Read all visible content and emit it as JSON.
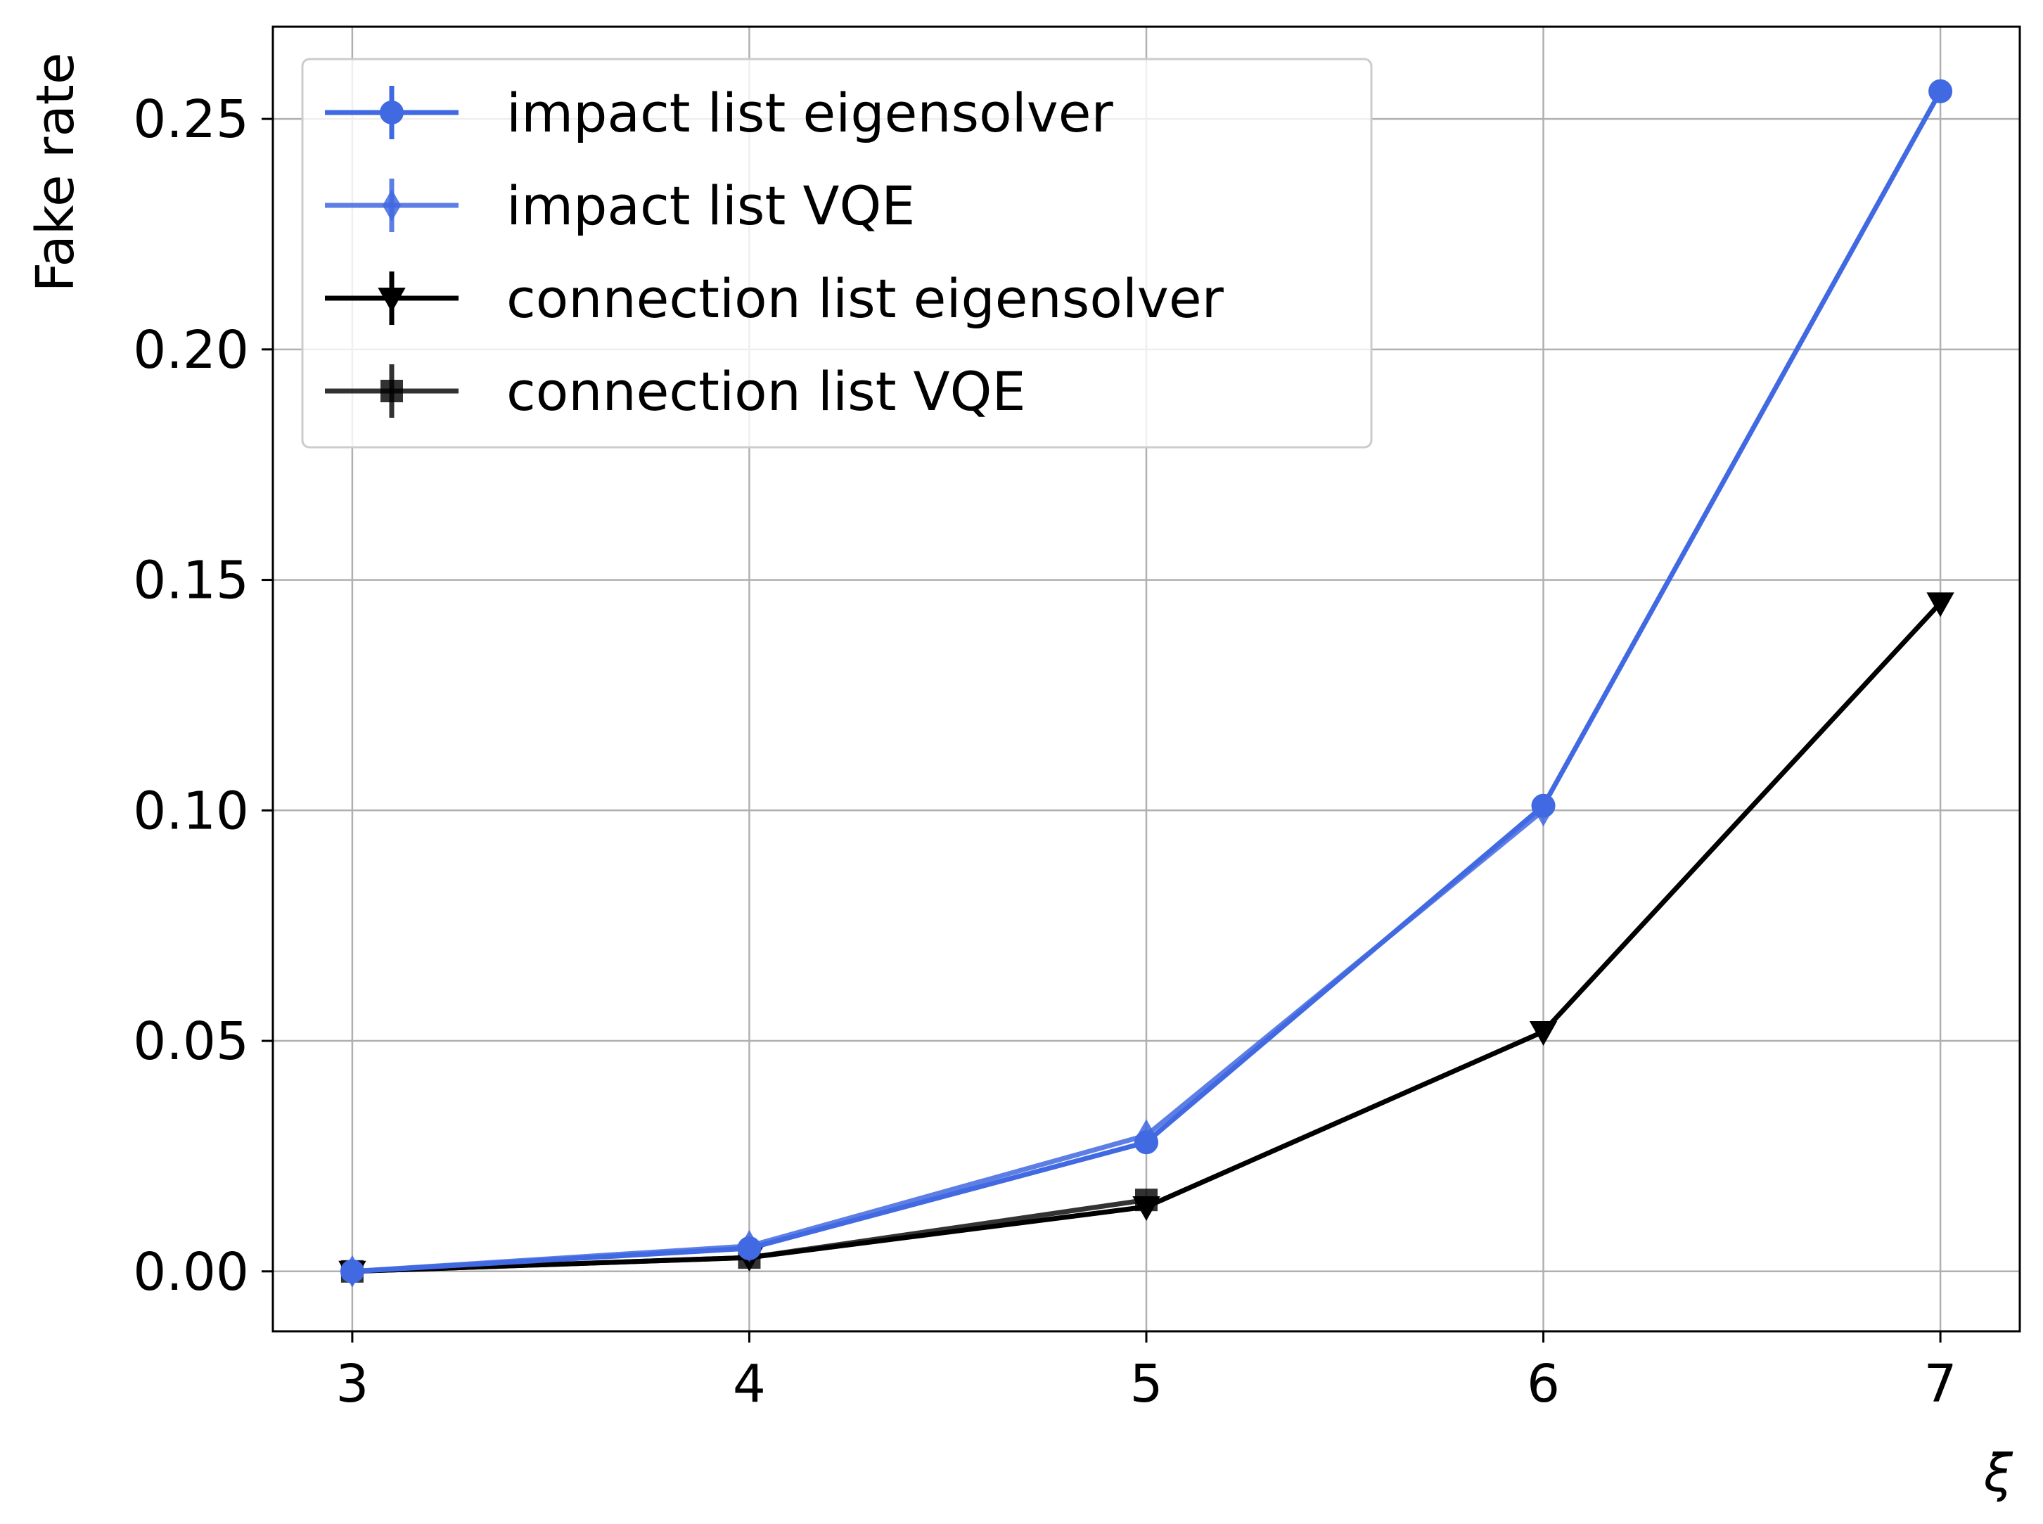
{
  "chart_data": {
    "type": "line",
    "title": "",
    "xlabel": "ξ",
    "ylabel": "Fake rate",
    "x": [
      3,
      4,
      5,
      6,
      7
    ],
    "xlim": [
      2.8,
      7.2
    ],
    "ylim": [
      -0.013,
      0.27
    ],
    "xticks": [
      3,
      4,
      5,
      6,
      7
    ],
    "xtick_labels": [
      "3",
      "4",
      "5",
      "6",
      "7"
    ],
    "yticks": [
      0.0,
      0.05,
      0.1,
      0.15,
      0.2,
      0.25
    ],
    "ytick_labels": [
      "0.00",
      "0.05",
      "0.10",
      "0.15",
      "0.20",
      "0.25"
    ],
    "grid": true,
    "legend_position": "top-left",
    "series": [
      {
        "name": "impact list eigensolver",
        "x": [
          3,
          4,
          5,
          6,
          7
        ],
        "values": [
          0.0,
          0.005,
          0.028,
          0.101,
          0.256
        ],
        "color": "#4169e1",
        "marker": "circle",
        "opacity": 1.0
      },
      {
        "name": "impact list VQE",
        "x": [
          3,
          4,
          5,
          6
        ],
        "values": [
          0.0,
          0.0055,
          0.0295,
          0.1
        ],
        "color": "#4169e1",
        "marker": "thin-diamond",
        "opacity": 0.85
      },
      {
        "name": "connection list eigensolver",
        "x": [
          3,
          4,
          5,
          6,
          7
        ],
        "values": [
          0.0,
          0.003,
          0.014,
          0.052,
          0.145
        ],
        "color": "#000000",
        "marker": "triangle-down",
        "opacity": 1.0
      },
      {
        "name": "connection list VQE",
        "x": [
          3,
          4,
          5
        ],
        "values": [
          0.0,
          0.003,
          0.0155
        ],
        "color": "#000000",
        "marker": "square",
        "opacity": 0.8
      }
    ]
  }
}
